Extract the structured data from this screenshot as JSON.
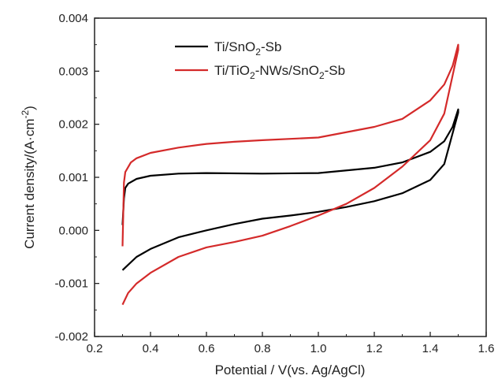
{
  "chart_data": {
    "type": "line",
    "xlabel": "Potential / V(vs. Ag/AgCl)",
    "ylabel": "Current density/(A·cm",
    "ylabel_sup": "-2",
    "ylabel_close": ")",
    "xlim": [
      0.2,
      1.6
    ],
    "ylim": [
      -0.002,
      0.004
    ],
    "xticks": [
      0.2,
      0.4,
      0.6,
      0.8,
      1.0,
      1.2,
      1.4,
      1.6
    ],
    "xtick_labels": [
      "0.2",
      "0.4",
      "0.6",
      "0.8",
      "1.0",
      "1.2",
      "1.4",
      "1.6"
    ],
    "yticks": [
      -0.002,
      -0.001,
      0.0,
      0.001,
      0.002,
      0.003,
      0.004
    ],
    "ytick_labels": [
      "-0.002",
      "-0.001",
      "0.000",
      "0.001",
      "0.002",
      "0.003",
      "0.004"
    ],
    "grid": false,
    "legend_position": "top-center",
    "series": [
      {
        "name": "Ti/SnO2-Sb",
        "legend_parts": [
          {
            "text": "Ti/SnO",
            "sub": false
          },
          {
            "text": "2",
            "sub": true
          },
          {
            "text": "-Sb",
            "sub": false
          }
        ],
        "color": "#000000",
        "x": [
          0.3,
          0.305,
          0.31,
          0.32,
          0.35,
          0.4,
          0.5,
          0.6,
          0.8,
          1.0,
          1.2,
          1.3,
          1.4,
          1.45,
          1.48,
          1.5,
          1.5,
          1.45,
          1.4,
          1.3,
          1.2,
          1.1,
          1.0,
          0.9,
          0.8,
          0.7,
          0.6,
          0.5,
          0.4,
          0.35,
          0.32,
          0.3
        ],
        "y": [
          0.0001,
          0.0006,
          0.0008,
          0.00088,
          0.00097,
          0.00103,
          0.00107,
          0.00108,
          0.00107,
          0.00108,
          0.00118,
          0.00128,
          0.00148,
          0.00168,
          0.00195,
          0.00228,
          0.00222,
          0.00125,
          0.00095,
          0.0007,
          0.00055,
          0.00044,
          0.00035,
          0.00028,
          0.00022,
          0.00012,
          0.0,
          -0.00013,
          -0.00035,
          -0.0005,
          -0.00065,
          -0.00075
        ]
      },
      {
        "name": "Ti/TiO2-NWs/SnO2-Sb",
        "legend_parts": [
          {
            "text": "Ti/TiO",
            "sub": false
          },
          {
            "text": "2",
            "sub": true
          },
          {
            "text": "-NWs/SnO",
            "sub": false
          },
          {
            "text": "2",
            "sub": true
          },
          {
            "text": "-Sb",
            "sub": false
          }
        ],
        "color": "#d42a2a",
        "x": [
          0.3,
          0.305,
          0.31,
          0.33,
          0.35,
          0.4,
          0.5,
          0.6,
          0.7,
          0.8,
          1.0,
          1.2,
          1.3,
          1.4,
          1.45,
          1.48,
          1.5,
          1.5,
          1.45,
          1.4,
          1.3,
          1.2,
          1.1,
          1.0,
          0.9,
          0.8,
          0.7,
          0.6,
          0.5,
          0.4,
          0.35,
          0.32,
          0.3
        ],
        "y": [
          -0.0003,
          0.0009,
          0.0011,
          0.00128,
          0.00136,
          0.00146,
          0.00156,
          0.00163,
          0.00167,
          0.0017,
          0.00175,
          0.00195,
          0.0021,
          0.00245,
          0.00275,
          0.0031,
          0.0035,
          0.0034,
          0.0022,
          0.0017,
          0.0012,
          0.0008,
          0.0005,
          0.00028,
          8e-05,
          -0.0001,
          -0.00022,
          -0.00032,
          -0.0005,
          -0.0008,
          -0.001,
          -0.00118,
          -0.0014
        ]
      }
    ]
  }
}
